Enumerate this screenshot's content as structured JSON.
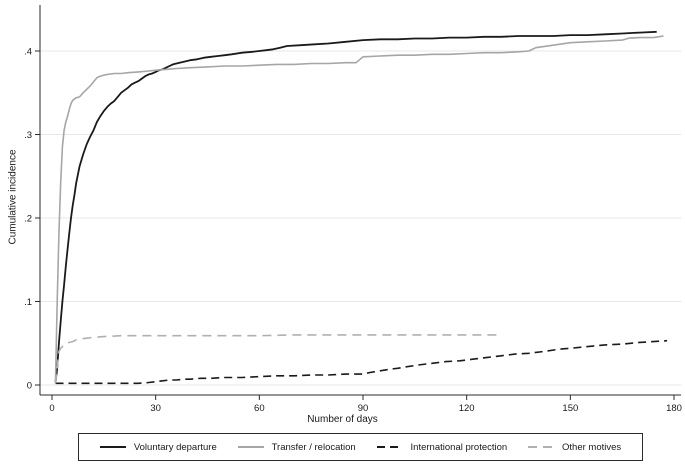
{
  "figure": {
    "background": "#ffffff",
    "text_color": "#1a1a1a",
    "axis_color": "#2b2b2b",
    "grid_color": "#e7e7e7"
  },
  "axes": {
    "x": {
      "label": "Number of days",
      "ticks": [
        0,
        30,
        60,
        90,
        120,
        150,
        180
      ],
      "tick_labels": [
        "0",
        "30",
        "60",
        "90",
        "120",
        "150",
        "180"
      ]
    },
    "y": {
      "label": "Cumulative incidence",
      "ticks": [
        0,
        0.1,
        0.2,
        0.3,
        0.4
      ],
      "tick_labels": [
        "0",
        ".1",
        ".2",
        ".3",
        ".4"
      ]
    }
  },
  "chart_data": {
    "type": "line",
    "title": "",
    "xlabel": "Number of days",
    "ylabel": "Cumulative incidence",
    "xlim": [
      0,
      186
    ],
    "ylim": [
      0,
      0.455
    ],
    "grid": "horizontal",
    "legend_position": "bottom",
    "series": [
      {
        "name": "Voluntary departure",
        "color": "#1a1a1a",
        "dash": "",
        "width": 1.8,
        "points": [
          [
            1,
            0.003
          ],
          [
            1.5,
            0.02
          ],
          [
            2,
            0.05
          ],
          [
            2.5,
            0.075
          ],
          [
            3,
            0.1
          ],
          [
            3.5,
            0.12
          ],
          [
            4,
            0.142
          ],
          [
            4.5,
            0.163
          ],
          [
            5,
            0.182
          ],
          [
            5.5,
            0.2
          ],
          [
            6,
            0.215
          ],
          [
            6.5,
            0.228
          ],
          [
            7,
            0.242
          ],
          [
            7.5,
            0.252
          ],
          [
            8,
            0.262
          ],
          [
            9,
            0.276
          ],
          [
            10,
            0.288
          ],
          [
            11,
            0.297
          ],
          [
            12,
            0.305
          ],
          [
            13,
            0.315
          ],
          [
            14,
            0.322
          ],
          [
            15,
            0.328
          ],
          [
            16,
            0.333
          ],
          [
            17,
            0.337
          ],
          [
            18,
            0.34
          ],
          [
            19,
            0.345
          ],
          [
            20,
            0.35
          ],
          [
            21,
            0.353
          ],
          [
            22,
            0.356
          ],
          [
            23,
            0.36
          ],
          [
            24,
            0.362
          ],
          [
            25,
            0.364
          ],
          [
            26,
            0.367
          ],
          [
            27,
            0.37
          ],
          [
            28,
            0.372
          ],
          [
            29,
            0.373
          ],
          [
            30,
            0.375
          ],
          [
            31,
            0.377
          ],
          [
            32,
            0.378
          ],
          [
            33,
            0.38
          ],
          [
            34,
            0.382
          ],
          [
            35,
            0.384
          ],
          [
            36,
            0.385
          ],
          [
            38,
            0.387
          ],
          [
            40,
            0.389
          ],
          [
            42,
            0.39
          ],
          [
            44,
            0.392
          ],
          [
            46,
            0.393
          ],
          [
            48,
            0.394
          ],
          [
            50,
            0.395
          ],
          [
            52,
            0.396
          ],
          [
            55,
            0.398
          ],
          [
            58,
            0.399
          ],
          [
            60,
            0.4
          ],
          [
            62,
            0.401
          ],
          [
            64,
            0.402
          ],
          [
            66,
            0.404
          ],
          [
            68,
            0.406
          ],
          [
            72,
            0.407
          ],
          [
            76,
            0.408
          ],
          [
            80,
            0.409
          ],
          [
            85,
            0.411
          ],
          [
            90,
            0.413
          ],
          [
            95,
            0.414
          ],
          [
            100,
            0.414
          ],
          [
            105,
            0.415
          ],
          [
            110,
            0.415
          ],
          [
            115,
            0.416
          ],
          [
            120,
            0.416
          ],
          [
            125,
            0.417
          ],
          [
            130,
            0.417
          ],
          [
            135,
            0.418
          ],
          [
            140,
            0.418
          ],
          [
            145,
            0.418
          ],
          [
            150,
            0.419
          ],
          [
            155,
            0.419
          ],
          [
            160,
            0.42
          ],
          [
            165,
            0.421
          ],
          [
            170,
            0.422
          ],
          [
            175,
            0.423
          ]
        ]
      },
      {
        "name": "Transfer / relocation",
        "color": "#a6a6a6",
        "dash": "",
        "width": 1.6,
        "points": [
          [
            1,
            0.005
          ],
          [
            1.5,
            0.1
          ],
          [
            2,
            0.18
          ],
          [
            2.5,
            0.24
          ],
          [
            3,
            0.285
          ],
          [
            3.5,
            0.305
          ],
          [
            4,
            0.315
          ],
          [
            4.5,
            0.322
          ],
          [
            5,
            0.33
          ],
          [
            5.5,
            0.337
          ],
          [
            6,
            0.341
          ],
          [
            7,
            0.344
          ],
          [
            8,
            0.345
          ],
          [
            9,
            0.35
          ],
          [
            10,
            0.354
          ],
          [
            11,
            0.358
          ],
          [
            12,
            0.363
          ],
          [
            13,
            0.368
          ],
          [
            14,
            0.37
          ],
          [
            15,
            0.371
          ],
          [
            16,
            0.372
          ],
          [
            18,
            0.373
          ],
          [
            20,
            0.373
          ],
          [
            22,
            0.374
          ],
          [
            25,
            0.375
          ],
          [
            28,
            0.376
          ],
          [
            30,
            0.377
          ],
          [
            33,
            0.378
          ],
          [
            36,
            0.379
          ],
          [
            40,
            0.38
          ],
          [
            45,
            0.381
          ],
          [
            50,
            0.382
          ],
          [
            55,
            0.382
          ],
          [
            60,
            0.383
          ],
          [
            65,
            0.384
          ],
          [
            70,
            0.384
          ],
          [
            75,
            0.385
          ],
          [
            80,
            0.385
          ],
          [
            85,
            0.386
          ],
          [
            88,
            0.386
          ],
          [
            90,
            0.393
          ],
          [
            95,
            0.394
          ],
          [
            100,
            0.395
          ],
          [
            105,
            0.395
          ],
          [
            110,
            0.396
          ],
          [
            115,
            0.396
          ],
          [
            120,
            0.397
          ],
          [
            125,
            0.398
          ],
          [
            130,
            0.398
          ],
          [
            135,
            0.399
          ],
          [
            138,
            0.4
          ],
          [
            140,
            0.404
          ],
          [
            145,
            0.407
          ],
          [
            150,
            0.41
          ],
          [
            155,
            0.411
          ],
          [
            160,
            0.412
          ],
          [
            165,
            0.413
          ],
          [
            167,
            0.4155
          ],
          [
            170,
            0.416
          ],
          [
            174,
            0.416
          ],
          [
            177,
            0.418
          ]
        ]
      },
      {
        "name": "International protection",
        "color": "#1a1a1a",
        "dash": "8 5",
        "width": 1.6,
        "points": [
          [
            1,
            0.002
          ],
          [
            5,
            0.002
          ],
          [
            10,
            0.002
          ],
          [
            15,
            0.002
          ],
          [
            20,
            0.002
          ],
          [
            25,
            0.002
          ],
          [
            28,
            0.003
          ],
          [
            30,
            0.004
          ],
          [
            32,
            0.005
          ],
          [
            34,
            0.006
          ],
          [
            36,
            0.006
          ],
          [
            38,
            0.007
          ],
          [
            40,
            0.007
          ],
          [
            43,
            0.008
          ],
          [
            46,
            0.008
          ],
          [
            50,
            0.009
          ],
          [
            55,
            0.009
          ],
          [
            60,
            0.01
          ],
          [
            65,
            0.011
          ],
          [
            70,
            0.011
          ],
          [
            75,
            0.012
          ],
          [
            80,
            0.012
          ],
          [
            85,
            0.013
          ],
          [
            90,
            0.013
          ],
          [
            92,
            0.015
          ],
          [
            95,
            0.017
          ],
          [
            98,
            0.019
          ],
          [
            100,
            0.02
          ],
          [
            103,
            0.022
          ],
          [
            106,
            0.024
          ],
          [
            110,
            0.026
          ],
          [
            114,
            0.028
          ],
          [
            118,
            0.029
          ],
          [
            122,
            0.031
          ],
          [
            126,
            0.033
          ],
          [
            130,
            0.035
          ],
          [
            134,
            0.037
          ],
          [
            138,
            0.038
          ],
          [
            142,
            0.04
          ],
          [
            147,
            0.043
          ],
          [
            150,
            0.044
          ],
          [
            155,
            0.046
          ],
          [
            160,
            0.048
          ],
          [
            165,
            0.049
          ],
          [
            170,
            0.051
          ],
          [
            174,
            0.052
          ],
          [
            178,
            0.053
          ]
        ]
      },
      {
        "name": "Other motives",
        "color": "#b0b0b0",
        "dash": "9 6",
        "width": 1.6,
        "points": [
          [
            1,
            0.002
          ],
          [
            1.5,
            0.02
          ],
          [
            2,
            0.04
          ],
          [
            2.5,
            0.044
          ],
          [
            3,
            0.046
          ],
          [
            4,
            0.049
          ],
          [
            5,
            0.051
          ],
          [
            6,
            0.052
          ],
          [
            7,
            0.054
          ],
          [
            8,
            0.055
          ],
          [
            10,
            0.056
          ],
          [
            12,
            0.057
          ],
          [
            15,
            0.058
          ],
          [
            20,
            0.059
          ],
          [
            30,
            0.059
          ],
          [
            40,
            0.059
          ],
          [
            50,
            0.059
          ],
          [
            60,
            0.059
          ],
          [
            70,
            0.06
          ],
          [
            80,
            0.06
          ],
          [
            90,
            0.06
          ],
          [
            100,
            0.06
          ],
          [
            110,
            0.06
          ],
          [
            120,
            0.06
          ],
          [
            125,
            0.06
          ],
          [
            129,
            0.06
          ]
        ]
      }
    ]
  },
  "legend": {
    "items": [
      {
        "label": "Voluntary departure",
        "color": "#1a1a1a",
        "dash": ""
      },
      {
        "label": "Transfer / relocation",
        "color": "#a6a6a6",
        "dash": ""
      },
      {
        "label": "International protection",
        "color": "#1a1a1a",
        "dash": "8 5"
      },
      {
        "label": "Other motives",
        "color": "#b0b0b0",
        "dash": "9 6"
      }
    ]
  }
}
